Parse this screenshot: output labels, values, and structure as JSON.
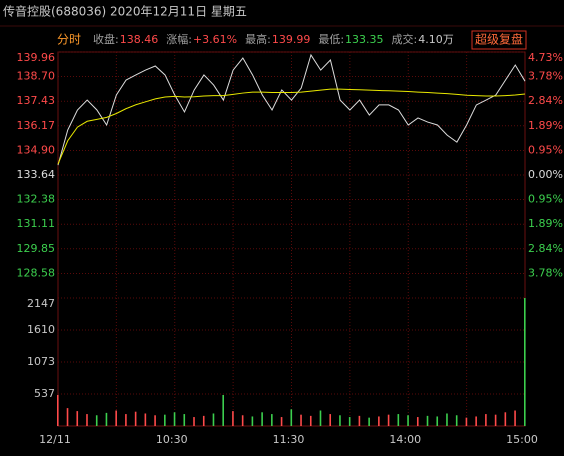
{
  "header": {
    "title": "传音控股(688036)  2020年12月11日  星期五"
  },
  "quote": {
    "tab": "分时",
    "items": [
      {
        "label": "收盘:",
        "value": "138.46"
      },
      {
        "label": "涨幅:",
        "value": "+3.61%"
      },
      {
        "label": "最高:",
        "value": "139.99"
      },
      {
        "label": "最低:",
        "value": "133.35"
      },
      {
        "label": "成交:",
        "value": "4.10万"
      }
    ],
    "button": "超级复盘"
  },
  "chart_data": [
    {
      "type": "line",
      "x": [
        0,
        5,
        10,
        15,
        20,
        25,
        30,
        35,
        40,
        45,
        50,
        55,
        60,
        65,
        70,
        75,
        80,
        85,
        90,
        95,
        100,
        105,
        110,
        115,
        120,
        125,
        130,
        135,
        140,
        145,
        150,
        155,
        160,
        165,
        170,
        175,
        180,
        185,
        190,
        195,
        200,
        205,
        210,
        215,
        220,
        225,
        230,
        235,
        240
      ],
      "xlim": [
        0,
        240
      ],
      "xgrid": [
        30,
        60,
        90,
        120,
        150,
        180,
        210
      ],
      "series": [
        {
          "name": "价格",
          "color": "#dddddd",
          "values": [
            134.15,
            135.95,
            136.98,
            137.49,
            136.98,
            136.21,
            137.75,
            138.52,
            138.78,
            139.03,
            139.24,
            138.78,
            137.75,
            136.88,
            138.01,
            138.78,
            138.26,
            137.49,
            139.03,
            139.65,
            138.78,
            137.75,
            136.98,
            138.01,
            137.49,
            138.11,
            139.81,
            139.03,
            139.55,
            137.49,
            136.98,
            137.49,
            136.72,
            137.24,
            137.24,
            136.98,
            136.21,
            136.57,
            136.36,
            136.21,
            135.69,
            135.33,
            136.21,
            137.24,
            137.49,
            137.75,
            138.52,
            139.29,
            138.46
          ]
        },
        {
          "name": "均价",
          "color": "#e8e800",
          "values": [
            134.2,
            135.4,
            136.1,
            136.4,
            136.5,
            136.6,
            136.8,
            137.05,
            137.25,
            137.4,
            137.55,
            137.65,
            137.68,
            137.65,
            137.66,
            137.7,
            137.72,
            137.72,
            137.78,
            137.85,
            137.9,
            137.9,
            137.88,
            137.88,
            137.88,
            137.9,
            137.95,
            138.0,
            138.05,
            138.05,
            138.03,
            138.02,
            138.0,
            137.98,
            137.97,
            137.95,
            137.93,
            137.9,
            137.88,
            137.85,
            137.82,
            137.78,
            137.74,
            137.72,
            137.7,
            137.7,
            137.72,
            137.75,
            137.8
          ]
        }
      ],
      "ylim": [
        127.32,
        139.96
      ],
      "yticks": [
        139.96,
        {
          "value": 138.7,
          "label": "138.70"
        },
        137.43,
        136.17,
        {
          "value": 134.9,
          "label": "134.90"
        },
        133.64,
        132.38,
        131.11,
        129.85,
        128.58
      ],
      "y2lim": [
        -4.73,
        4.73
      ],
      "y2ticks": [
        {
          "value": 4.73,
          "label": "4.73%"
        },
        {
          "value": 3.78,
          "label": "3.78%"
        },
        {
          "value": 2.84,
          "label": "2.84%"
        },
        {
          "value": 1.89,
          "label": "1.89%"
        },
        {
          "value": 0.95,
          "label": "0.95%"
        },
        {
          "value": 0,
          "label": "0.00%"
        },
        {
          "value": -0.95,
          "label": "0.95%"
        },
        {
          "value": -1.89,
          "label": "1.89%"
        },
        {
          "value": -2.84,
          "label": "2.84%"
        },
        {
          "value": -3.78,
          "label": "3.78%"
        }
      ],
      "up_color": "#ff4a4a",
      "down_color": "#3ccf4e",
      "flat_color": "#dddddd"
    },
    {
      "type": "bar",
      "x": [
        0,
        5,
        10,
        15,
        20,
        25,
        30,
        35,
        40,
        45,
        50,
        55,
        60,
        65,
        70,
        75,
        80,
        85,
        90,
        95,
        100,
        105,
        110,
        115,
        120,
        125,
        130,
        135,
        140,
        145,
        150,
        155,
        160,
        165,
        170,
        175,
        180,
        185,
        190,
        195,
        200,
        205,
        210,
        215,
        220,
        225,
        230,
        235,
        240
      ],
      "xlim": [
        0,
        240
      ],
      "xgrid": [
        30,
        60,
        90,
        120,
        150,
        180,
        210
      ],
      "values": [
        520,
        300,
        250,
        200,
        180,
        220,
        260,
        200,
        240,
        210,
        180,
        190,
        230,
        200,
        150,
        170,
        210,
        520,
        250,
        180,
        160,
        230,
        200,
        150,
        280,
        190,
        170,
        260,
        200,
        180,
        150,
        170,
        140,
        160,
        190,
        200,
        180,
        150,
        170,
        160,
        210,
        180,
        140,
        160,
        200,
        190,
        230,
        260,
        2147
      ],
      "ylim": [
        0,
        2147
      ],
      "yticks": [
        537,
        1073,
        1610,
        2147
      ],
      "xticks": [
        {
          "value": 0,
          "label": "12/11"
        },
        {
          "value": 60,
          "label": "10:30"
        },
        {
          "value": 120,
          "label": "11:30"
        },
        {
          "value": 180,
          "label": "14:00"
        },
        {
          "value": 240,
          "label": "15:00"
        }
      ]
    }
  ]
}
